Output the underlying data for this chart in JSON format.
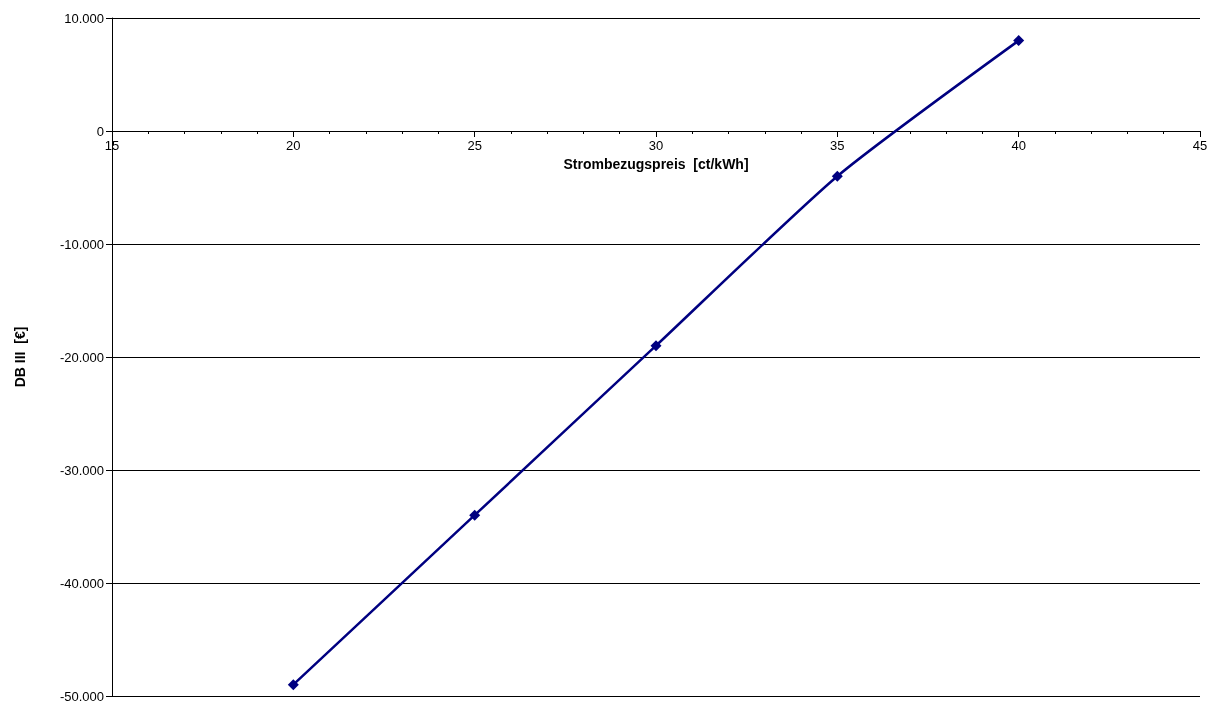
{
  "chart_data": {
    "type": "line",
    "xlabel": "Strombezugspreis  [ct/kWh]",
    "ylabel": "DB III  [€]",
    "x": [
      20,
      25,
      30,
      35,
      40
    ],
    "series": [
      {
        "color": "#000080",
        "values": [
          -49000,
          -34000,
          -19000,
          -4000,
          8000
        ]
      }
    ],
    "xlim": [
      15,
      45
    ],
    "xticks": [
      15,
      20,
      25,
      30,
      35,
      40,
      45
    ],
    "ylim": [
      -50000,
      10000
    ],
    "yticks": [
      {
        "value": -50000,
        "label": "-50.000"
      },
      {
        "value": -40000,
        "label": "-40.000"
      },
      {
        "value": -30000,
        "label": "-30.000"
      },
      {
        "value": -20000,
        "label": "-20.000"
      },
      {
        "value": -10000,
        "label": "-10.000"
      },
      0,
      {
        "value": 10000,
        "label": "10.000"
      }
    ],
    "grid": "y",
    "marker": "diamond",
    "line_style": "solid"
  }
}
